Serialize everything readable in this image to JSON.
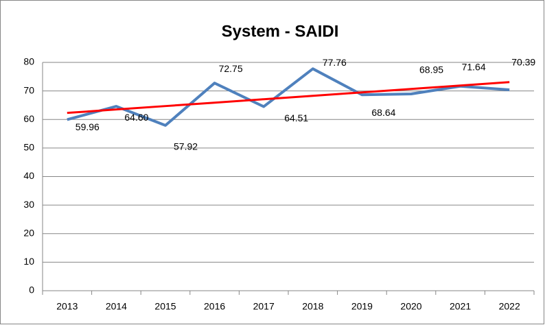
{
  "chart_data": {
    "type": "line",
    "title": "System - SAIDI",
    "categories": [
      "2013",
      "2014",
      "2015",
      "2016",
      "2017",
      "2018",
      "2019",
      "2020",
      "2021",
      "2022"
    ],
    "series": [
      {
        "color": "#4f81bd",
        "values": [
          59.96,
          64.6,
          57.92,
          72.75,
          64.51,
          77.76,
          68.64,
          68.95,
          71.64,
          70.39
        ],
        "value_labels": [
          "59.96",
          "64.60",
          "57.92",
          "72.75",
          "64.51",
          "77.76",
          "68.64",
          "68.95",
          "71.64",
          "70.39"
        ]
      },
      {
        "color": "#ff0000",
        "values": [
          62.3,
          63.5,
          64.7,
          65.9,
          67.1,
          68.3,
          69.5,
          70.7,
          71.9,
          73.1
        ]
      }
    ],
    "ylim": [
      0,
      80
    ],
    "yticks": [
      0,
      10,
      20,
      30,
      40,
      50,
      60,
      70,
      80
    ],
    "grid": true
  }
}
